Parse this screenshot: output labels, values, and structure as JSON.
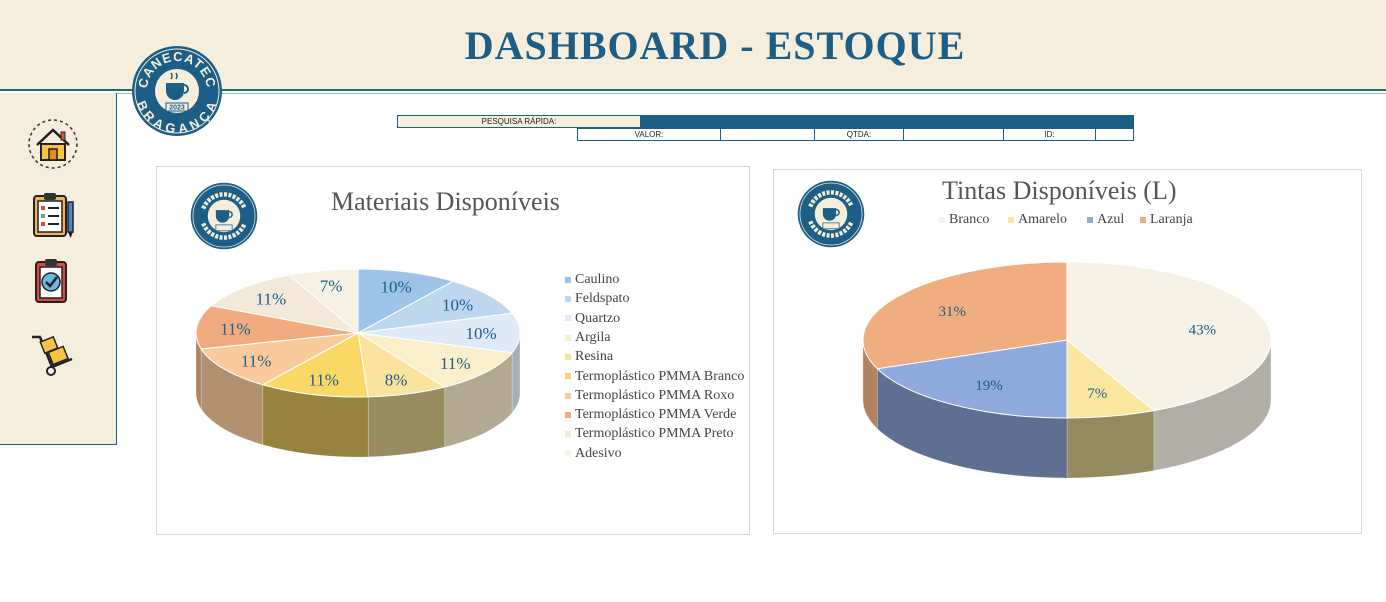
{
  "header": {
    "title": "DASHBOARD - ESTOQUE"
  },
  "logo": {
    "top_text": "CANECATEC",
    "year": "2023",
    "bottom_text": "BRAGANÇA"
  },
  "sidebar": {
    "items": [
      {
        "icon": "home-icon"
      },
      {
        "icon": "clipboard-list-icon"
      },
      {
        "icon": "clipboard-check-icon"
      },
      {
        "icon": "hand-truck-icon"
      }
    ]
  },
  "search": {
    "label": "PESQUISA RÁPIDA:",
    "value_label": "VALOR:",
    "qty_label": "QTDA:",
    "id_label": "ID:",
    "value": "",
    "qty": "",
    "id": ""
  },
  "colors": {
    "brand_blue": "#1c5e86",
    "header_bg": "#f5eedd"
  },
  "chart_data": [
    {
      "type": "pie",
      "title": "Materiais Disponíveis",
      "legend_position": "right",
      "categories": [
        "Caulino",
        "Feldspato",
        "Quartzo",
        "Argila",
        "Resina",
        "Termoplástico PMMA Branco",
        "Termoplástico PMMA Roxo",
        "Termoplástico PMMA Verde",
        "Termoplástico PMMA Preto",
        "Adesivo"
      ],
      "values": [
        10,
        10,
        10,
        11,
        8,
        11,
        11,
        11,
        11,
        7
      ],
      "labels": [
        "10%",
        "10%",
        "10%",
        "11%",
        "8%",
        "11%",
        "11%",
        "11%",
        "11%",
        "7%"
      ],
      "colors": [
        "#9dc3e6",
        "#bdd7ee",
        "#deebf7",
        "#fbeecb",
        "#fae39d",
        "#fad866",
        "#f9cb9c",
        "#f0ac80",
        "#f4e9d8",
        "#f7f1e3"
      ]
    },
    {
      "type": "pie",
      "title": "Tintas Disponíveis (L)",
      "legend_position": "top",
      "categories": [
        "Branco",
        "Amarelo",
        "Azul",
        "Laranja"
      ],
      "values": [
        43,
        7,
        19,
        31
      ],
      "labels": [
        "43%",
        "7%",
        "19%",
        "31%"
      ],
      "colors": [
        "#f6f3e6",
        "#fbe6a0",
        "#8ea9db",
        "#f0ae80"
      ]
    }
  ]
}
